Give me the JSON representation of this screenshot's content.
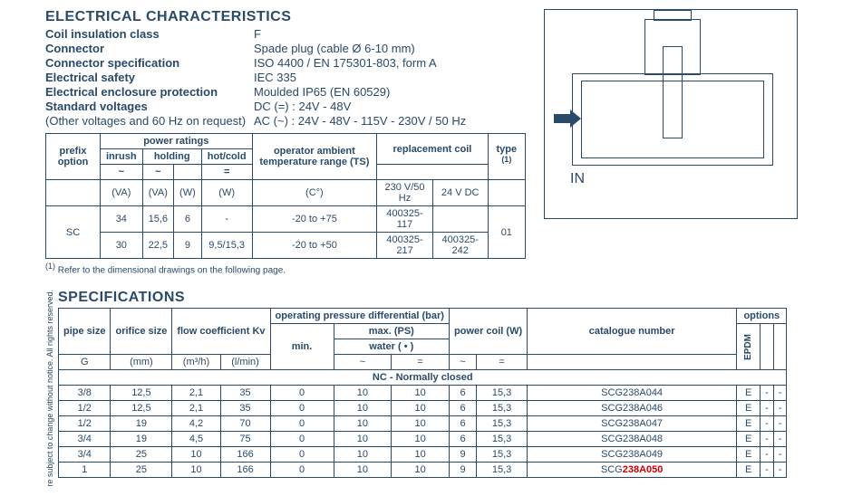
{
  "electrical": {
    "title": "ELECTRICAL CHARACTERISTICS",
    "rows": [
      {
        "label": "Coil insulation class",
        "value": "F"
      },
      {
        "label": "Connector",
        "value": "Spade plug  (cable Ø 6-10 mm)"
      },
      {
        "label": "Connector specification",
        "value": "ISO 4400 / EN 175301-803, form A"
      },
      {
        "label": "Electrical safety",
        "value": "IEC 335"
      },
      {
        "label": "Electrical enclosure protection",
        "value": "Moulded IP65 (EN 60529)"
      },
      {
        "label": "Standard voltages",
        "value": "DC (=) : 24V - 48V"
      }
    ],
    "other_voltages_label": "(Other voltages and 60 Hz on request)",
    "other_voltages_value": "AC (~) : 24V - 48V - 115V - 230V / 50 Hz"
  },
  "ratings_table": {
    "h_prefix": "prefix option",
    "h_power": "power ratings",
    "h_inrush": "inrush",
    "h_holding": "holding",
    "h_hotcold": "hot/cold",
    "h_tilde": "~",
    "h_eq": "=",
    "h_op_amb": "operator ambient temperature range (TS)",
    "h_repl": "replacement coil",
    "h_type": "type ",
    "h_type_sup": "(1)",
    "u_va": "(VA)",
    "u_w": "(W)",
    "u_c": "(C°)",
    "u_230": "230 V/50 Hz",
    "u_24": "24 V DC",
    "sc": "SC",
    "r1": [
      "34",
      "15,6",
      "6",
      "-",
      "-20 to +75",
      "400325-117",
      "",
      "01"
    ],
    "r2": [
      "30",
      "22,5",
      "9",
      "9,5/15,3",
      "-20 to +50",
      "400325-217",
      "400325-242",
      ""
    ],
    "footnote_sup": "(1)",
    "footnote": "  Refer to the dimensional drawings on the following page."
  },
  "diagram": {
    "in_label": "IN"
  },
  "spec": {
    "vtext": "re subject to change without notice. All rights reserved.",
    "title": "SPECIFICATIONS",
    "h_pipe": "pipe size",
    "h_orifice": "orifice size",
    "h_flow": "flow coefficient Kv",
    "h_opdiff": "operating pressure differential (bar)",
    "h_min": "min.",
    "h_max": "max. (PS)",
    "h_water": "water ( • )",
    "h_power": "power coil (W)",
    "h_cat": "catalogue number",
    "h_options": "options",
    "h_epdm": "EPDM",
    "u_g": "G",
    "u_mm": "(mm)",
    "u_m3h": "(m³/h)",
    "u_lmin": "(l/min)",
    "u_tilde": "~",
    "u_eq": "=",
    "nc_label": "NC - Normally closed",
    "rows": [
      {
        "pipe": "3/8",
        "orifice": "12,5",
        "kv1": "2,1",
        "kv2": "35",
        "min": "0",
        "max1": "10",
        "max2": "10",
        "p1": "6",
        "p2": "15,3",
        "cat": "SCG238A044",
        "epdm": "E",
        "o1": "-",
        "o2": "-"
      },
      {
        "pipe": "1/2",
        "orifice": "12,5",
        "kv1": "2,1",
        "kv2": "35",
        "min": "0",
        "max1": "10",
        "max2": "10",
        "p1": "6",
        "p2": "15,3",
        "cat": "SCG238A046",
        "epdm": "E",
        "o1": "-",
        "o2": "-"
      },
      {
        "pipe": "1/2",
        "orifice": "19",
        "kv1": "4,2",
        "kv2": "70",
        "min": "0",
        "max1": "10",
        "max2": "10",
        "p1": "6",
        "p2": "15,3",
        "cat": "SCG238A047",
        "epdm": "E",
        "o1": "-",
        "o2": "-"
      },
      {
        "pipe": "3/4",
        "orifice": "19",
        "kv1": "4,5",
        "kv2": "75",
        "min": "0",
        "max1": "10",
        "max2": "10",
        "p1": "6",
        "p2": "15,3",
        "cat": "SCG238A048",
        "epdm": "E",
        "o1": "-",
        "o2": "-"
      },
      {
        "pipe": "3/4",
        "orifice": "25",
        "kv1": "10",
        "kv2": "166",
        "min": "0",
        "max1": "10",
        "max2": "10",
        "p1": "9",
        "p2": "15,3",
        "cat": "SCG238A049",
        "epdm": "E",
        "o1": "-",
        "o2": "-"
      },
      {
        "pipe": "1",
        "orifice": "25",
        "kv1": "10",
        "kv2": "166",
        "min": "0",
        "max1": "10",
        "max2": "10",
        "p1": "9",
        "p2": "15,3",
        "cat": "SCG238A050",
        "cat_red": true,
        "epdm": "E",
        "o1": "-",
        "o2": "-"
      }
    ]
  }
}
